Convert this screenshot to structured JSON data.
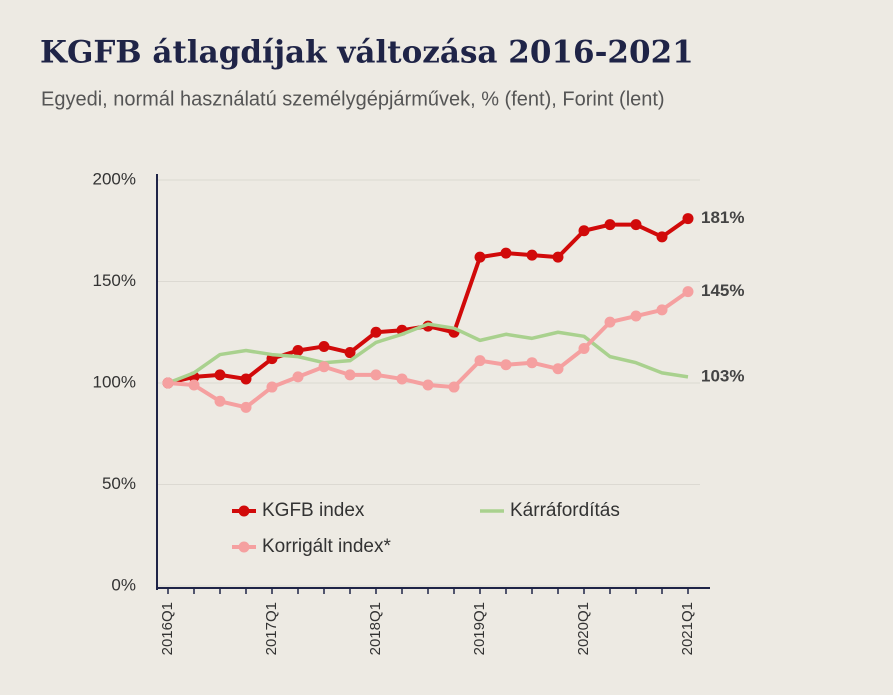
{
  "chart_data": {
    "type": "line",
    "title": "KGFB átlagdíjak változása 2016-2021",
    "subtitle": "Egyedi, normál használatú személygépjárművek, % (fent), Forint (lent)",
    "categories": [
      "2016Q1",
      null,
      null,
      null,
      "2017Q1",
      null,
      null,
      null,
      "2018Q1",
      null,
      null,
      null,
      "2019Q1",
      null,
      null,
      null,
      "2020Q1",
      null,
      null,
      null,
      "2021Q1"
    ],
    "ylim": [
      0,
      200
    ],
    "yticks": [
      {
        "value": 0,
        "label": "0%"
      },
      {
        "value": 50,
        "label": "50%"
      },
      {
        "value": 100,
        "label": "100%"
      },
      {
        "value": 150,
        "label": "150%"
      },
      {
        "value": 200,
        "label": "200%"
      }
    ],
    "grid": true,
    "series": [
      {
        "name": "KGFB index",
        "color": "#d10a0a",
        "markers": true,
        "values": [
          100,
          103,
          104,
          102,
          112,
          116,
          118,
          115,
          125,
          126,
          128,
          125,
          162,
          164,
          163,
          162,
          175,
          178,
          178,
          172,
          181
        ],
        "value_labels": [
          null,
          null,
          null,
          null,
          null,
          null,
          null,
          null,
          null,
          null,
          null,
          null,
          null,
          null,
          null,
          null,
          null,
          null,
          null,
          null,
          "181%"
        ]
      },
      {
        "name": "Kárráfordítás",
        "color": "#a9d18e",
        "markers": false,
        "values": [
          100,
          105,
          114,
          116,
          114,
          113,
          110,
          111,
          120,
          124,
          129,
          127,
          121,
          124,
          122,
          125,
          123,
          113,
          110,
          105,
          103
        ],
        "value_labels": [
          null,
          null,
          null,
          null,
          null,
          null,
          null,
          null,
          null,
          null,
          null,
          null,
          null,
          null,
          null,
          null,
          null,
          null,
          null,
          null,
          "103%"
        ]
      },
      {
        "name": "Korrigált index*",
        "color": "#f5a0a0",
        "markers": true,
        "values": [
          100,
          99,
          91,
          88,
          98,
          103,
          108,
          104,
          104,
          102,
          99,
          98,
          111,
          109,
          110,
          107,
          117,
          130,
          133,
          136,
          145
        ],
        "value_labels": [
          null,
          null,
          null,
          null,
          null,
          null,
          null,
          null,
          null,
          null,
          null,
          null,
          null,
          null,
          null,
          null,
          null,
          null,
          null,
          null,
          "145%"
        ]
      }
    ]
  }
}
